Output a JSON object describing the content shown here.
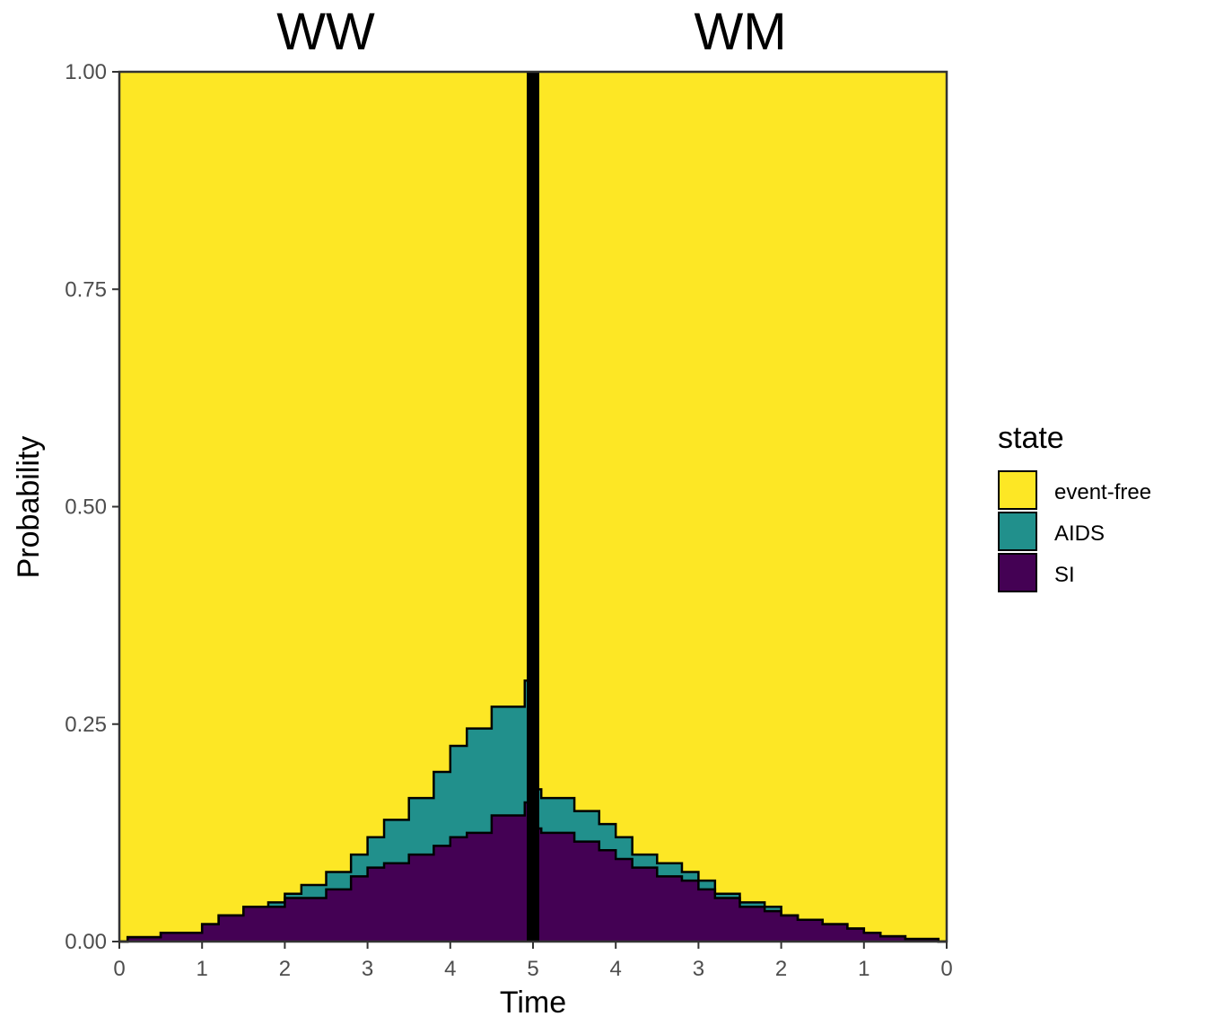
{
  "chart_data": {
    "type": "area",
    "subtype": "stacked-step",
    "facets": [
      "WW",
      "WM"
    ],
    "xlabel": "Time",
    "ylabel": "Probability",
    "ylim": [
      0,
      1
    ],
    "yticks": [
      "0.00",
      "0.25",
      "0.50",
      "0.75",
      "1.00"
    ],
    "xtick_labels": [
      "0",
      "1",
      "2",
      "3",
      "4",
      "5",
      "4",
      "3",
      "2",
      "1",
      "0"
    ],
    "xlim_left_facet": [
      0,
      5
    ],
    "xlim_right_facet": [
      5,
      0
    ],
    "legend": {
      "title": "state",
      "placement": "right",
      "entries": [
        {
          "label": "event-free",
          "color": "#FDE725"
        },
        {
          "label": "AIDS",
          "color": "#21908C"
        },
        {
          "label": "SI",
          "color": "#440154"
        }
      ]
    },
    "colors": {
      "event_free": "#FDE725",
      "aids": "#21908C",
      "si": "#440154",
      "outline": "#000000"
    },
    "series_left": {
      "time": [
        0,
        0.1,
        0.5,
        0.8,
        1.0,
        1.2,
        1.5,
        1.8,
        2.0,
        2.2,
        2.5,
        2.8,
        3.0,
        3.2,
        3.5,
        3.8,
        4.0,
        4.2,
        4.5,
        4.9
      ],
      "si": [
        0.0,
        0.005,
        0.01,
        0.01,
        0.02,
        0.03,
        0.04,
        0.04,
        0.05,
        0.05,
        0.06,
        0.075,
        0.085,
        0.09,
        0.1,
        0.11,
        0.12,
        0.125,
        0.145,
        0.16
      ],
      "aids": [
        0.0,
        0.005,
        0.01,
        0.01,
        0.02,
        0.03,
        0.04,
        0.045,
        0.055,
        0.065,
        0.08,
        0.1,
        0.12,
        0.14,
        0.165,
        0.195,
        0.225,
        0.245,
        0.27,
        0.3
      ]
    },
    "series_right": {
      "time": [
        0,
        0.1,
        0.5,
        0.8,
        1.0,
        1.2,
        1.5,
        1.8,
        2.0,
        2.2,
        2.5,
        2.8,
        3.0,
        3.2,
        3.5,
        3.8,
        4.0,
        4.2,
        4.5,
        4.9
      ],
      "si": [
        0.0,
        0.003,
        0.006,
        0.01,
        0.015,
        0.02,
        0.025,
        0.03,
        0.035,
        0.04,
        0.05,
        0.06,
        0.07,
        0.075,
        0.085,
        0.095,
        0.105,
        0.115,
        0.125,
        0.13
      ],
      "aids": [
        0.0,
        0.003,
        0.006,
        0.01,
        0.015,
        0.02,
        0.025,
        0.03,
        0.04,
        0.045,
        0.055,
        0.07,
        0.08,
        0.09,
        0.1,
        0.12,
        0.135,
        0.15,
        0.165,
        0.175
      ]
    }
  }
}
